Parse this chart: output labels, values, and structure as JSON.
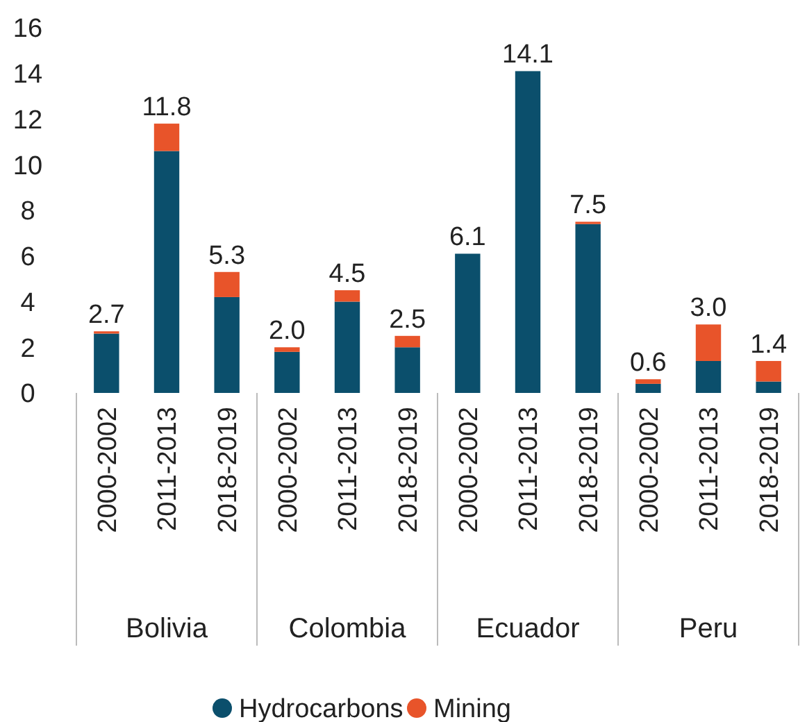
{
  "chart_data": {
    "type": "bar",
    "stacked": true,
    "categories": [
      "2000-2002",
      "2011-2013",
      "2018-2019",
      "2000-2002",
      "2011-2013",
      "2018-2019",
      "2000-2002",
      "2011-2013",
      "2018-2019",
      "2000-2002",
      "2011-2013",
      "2018-2019"
    ],
    "series": [
      {
        "name": "Hydrocarbons",
        "color": "#0b4f6c",
        "values": [
          2.6,
          10.6,
          4.2,
          1.8,
          4.0,
          2.0,
          6.1,
          14.1,
          7.4,
          0.4,
          1.4,
          0.5
        ]
      },
      {
        "name": "Mining",
        "color": "#e8542a",
        "values": [
          0.1,
          1.2,
          1.1,
          0.2,
          0.5,
          0.5,
          0,
          0,
          0.1,
          0.2,
          1.6,
          0.9
        ]
      }
    ],
    "totals": [
      "2.7",
      "11.8",
      "5.3",
      "2.0",
      "4.5",
      "2.5",
      "6.1",
      "14.1",
      "7.5",
      "0.6",
      "3.0",
      "1.4"
    ],
    "annotations": [
      "Bolivia",
      "Colombia",
      "Ecuador",
      "Peru"
    ],
    "ylim": [
      0,
      16
    ],
    "yticks": [
      0,
      2,
      4,
      6,
      8,
      10,
      12,
      14,
      16
    ],
    "grid": false,
    "legend": "bottom"
  }
}
